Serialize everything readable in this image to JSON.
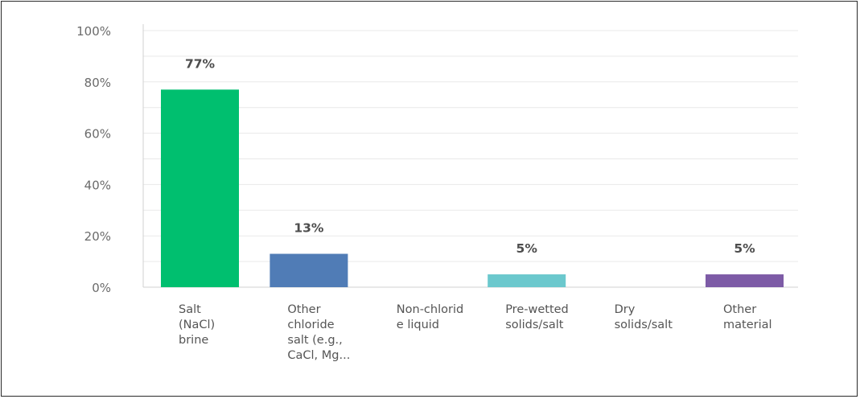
{
  "chart_data": {
    "type": "bar",
    "categories": [
      [
        "Salt",
        "(NaCl)",
        "brine"
      ],
      [
        "Other",
        "chloride",
        "salt (e.g.,",
        "CaCl, Mg..."
      ],
      [
        "Non-chlorid",
        "e liquid"
      ],
      [
        "Pre-wetted",
        "solids/salt"
      ],
      [
        "Dry",
        "solids/salt"
      ],
      [
        "Other",
        "material"
      ]
    ],
    "values": [
      77,
      13,
      0,
      5,
      0,
      5
    ],
    "data_labels": [
      "77%",
      "13%",
      "",
      "5%",
      "",
      "5%"
    ],
    "colors": [
      "#00bf6f",
      "#507cb6",
      "#f05b24",
      "#6bc8cd",
      "#f9be00",
      "#7d5ba6"
    ],
    "yticks": [
      "0%",
      "20%",
      "40%",
      "60%",
      "80%",
      "100%"
    ],
    "ylim": [
      0,
      100
    ],
    "title": "",
    "xlabel": "",
    "ylabel": "",
    "grid": true
  }
}
